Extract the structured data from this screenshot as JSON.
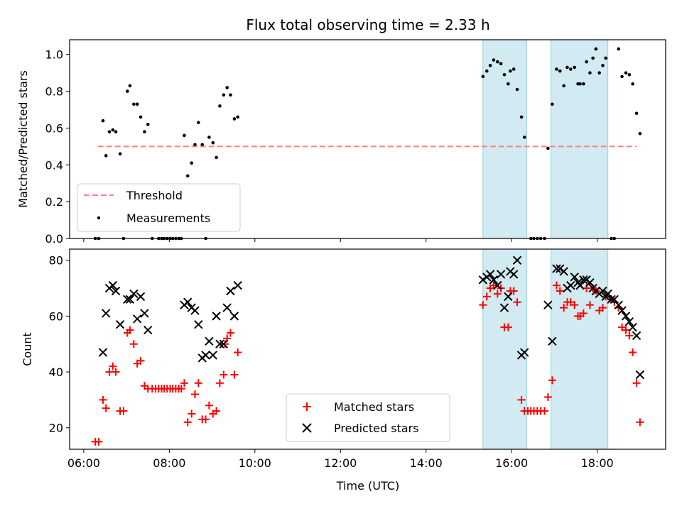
{
  "chart_data": {
    "type": "scatter",
    "title": "Flux total observing time = 2.33 h",
    "xlabel": "Time (UTC)",
    "x_unit": "hours UTC",
    "xlim": [
      5.67,
      19.6
    ],
    "x_ticks": [
      6,
      8,
      10,
      12,
      14,
      16,
      18
    ],
    "x_tick_labels": [
      "06:00",
      "08:00",
      "10:00",
      "12:00",
      "14:00",
      "16:00",
      "18:00"
    ],
    "shaded_intervals": [
      [
        15.33,
        16.35
      ],
      [
        16.92,
        18.25
      ]
    ],
    "shade_color": "#add8e6",
    "top_panel": {
      "ylabel": "Matched/Predicted stars",
      "ylim": [
        0.0,
        1.08
      ],
      "y_ticks": [
        0.0,
        0.2,
        0.4,
        0.6,
        0.8,
        1.0
      ],
      "y_tick_labels": [
        "0.0",
        "0.2",
        "0.4",
        "0.6",
        "0.8",
        "1.0"
      ],
      "legend_position": "lower-left",
      "threshold": {
        "name": "Threshold",
        "y": 0.5,
        "x_range": [
          6.33,
          18.92
        ],
        "color": "#ff7f7f"
      },
      "measurements": {
        "name": "Measurements",
        "color": "#000000",
        "points": [
          [
            6.27,
            0.0
          ],
          [
            6.35,
            0.0
          ],
          [
            6.45,
            0.64
          ],
          [
            6.52,
            0.45
          ],
          [
            6.6,
            0.58
          ],
          [
            6.68,
            0.59
          ],
          [
            6.75,
            0.58
          ],
          [
            6.85,
            0.46
          ],
          [
            6.93,
            0.0
          ],
          [
            7.02,
            0.8
          ],
          [
            7.08,
            0.83
          ],
          [
            7.17,
            0.73
          ],
          [
            7.25,
            0.73
          ],
          [
            7.33,
            0.66
          ],
          [
            7.42,
            0.58
          ],
          [
            7.5,
            0.62
          ],
          [
            7.6,
            0.0
          ],
          [
            7.75,
            0.0
          ],
          [
            7.82,
            0.0
          ],
          [
            7.88,
            0.0
          ],
          [
            7.95,
            0.0
          ],
          [
            8.02,
            0.0
          ],
          [
            8.08,
            0.0
          ],
          [
            8.15,
            0.0
          ],
          [
            8.22,
            0.0
          ],
          [
            8.28,
            0.0
          ],
          [
            8.35,
            0.56
          ],
          [
            8.43,
            0.34
          ],
          [
            8.52,
            0.41
          ],
          [
            8.6,
            0.51
          ],
          [
            8.68,
            0.63
          ],
          [
            8.77,
            0.51
          ],
          [
            8.85,
            0.0
          ],
          [
            8.93,
            0.55
          ],
          [
            9.02,
            0.52
          ],
          [
            9.1,
            0.44
          ],
          [
            9.18,
            0.72
          ],
          [
            9.27,
            0.78
          ],
          [
            9.35,
            0.82
          ],
          [
            9.43,
            0.78
          ],
          [
            9.52,
            0.65
          ],
          [
            9.6,
            0.66
          ],
          [
            15.33,
            0.88
          ],
          [
            15.42,
            0.91
          ],
          [
            15.5,
            0.94
          ],
          [
            15.58,
            0.97
          ],
          [
            15.67,
            0.96
          ],
          [
            15.75,
            0.95
          ],
          [
            15.83,
            0.89
          ],
          [
            15.92,
            0.84
          ],
          [
            15.97,
            0.91
          ],
          [
            16.05,
            0.92
          ],
          [
            16.13,
            0.81
          ],
          [
            16.23,
            0.66
          ],
          [
            16.3,
            0.55
          ],
          [
            16.45,
            0.0
          ],
          [
            16.52,
            0.0
          ],
          [
            16.6,
            0.0
          ],
          [
            16.68,
            0.0
          ],
          [
            16.77,
            0.0
          ],
          [
            16.85,
            0.49
          ],
          [
            16.95,
            0.73
          ],
          [
            17.05,
            0.92
          ],
          [
            17.13,
            0.91
          ],
          [
            17.22,
            0.83
          ],
          [
            17.3,
            0.93
          ],
          [
            17.38,
            0.92
          ],
          [
            17.47,
            0.93
          ],
          [
            17.55,
            0.84
          ],
          [
            17.6,
            0.84
          ],
          [
            17.68,
            0.84
          ],
          [
            17.75,
            0.96
          ],
          [
            17.83,
            0.9
          ],
          [
            17.9,
            0.98
          ],
          [
            17.97,
            1.03
          ],
          [
            18.05,
            0.9
          ],
          [
            18.13,
            0.94
          ],
          [
            18.2,
            0.98
          ],
          [
            18.33,
            0.0
          ],
          [
            18.4,
            0.0
          ],
          [
            18.5,
            1.03
          ],
          [
            18.58,
            0.88
          ],
          [
            18.67,
            0.9
          ],
          [
            18.75,
            0.89
          ],
          [
            18.83,
            0.84
          ],
          [
            18.92,
            0.68
          ],
          [
            19.0,
            0.57
          ]
        ]
      }
    },
    "bottom_panel": {
      "ylabel": "Count",
      "ylim": [
        12.3,
        84
      ],
      "y_ticks": [
        20,
        40,
        60,
        80
      ],
      "y_tick_labels": [
        "20",
        "40",
        "60",
        "80"
      ],
      "legend_position": "lower-center",
      "series": [
        {
          "name": "Matched stars",
          "marker": "plus",
          "color": "#ff0000",
          "points": [
            [
              6.27,
              15
            ],
            [
              6.35,
              15
            ],
            [
              6.45,
              30
            ],
            [
              6.52,
              27
            ],
            [
              6.6,
              40
            ],
            [
              6.68,
              42
            ],
            [
              6.75,
              40
            ],
            [
              6.85,
              26
            ],
            [
              6.93,
              26
            ],
            [
              7.02,
              54
            ],
            [
              7.08,
              55
            ],
            [
              7.17,
              50
            ],
            [
              7.25,
              43
            ],
            [
              7.33,
              44
            ],
            [
              7.42,
              35
            ],
            [
              7.5,
              34
            ],
            [
              7.6,
              34
            ],
            [
              7.68,
              34
            ],
            [
              7.75,
              34
            ],
            [
              7.82,
              34
            ],
            [
              7.88,
              34
            ],
            [
              7.95,
              34
            ],
            [
              8.02,
              34
            ],
            [
              8.08,
              34
            ],
            [
              8.15,
              34
            ],
            [
              8.22,
              34
            ],
            [
              8.28,
              34
            ],
            [
              8.35,
              36
            ],
            [
              8.43,
              22
            ],
            [
              8.52,
              25
            ],
            [
              8.6,
              32
            ],
            [
              8.68,
              36
            ],
            [
              8.77,
              23
            ],
            [
              8.85,
              23
            ],
            [
              8.93,
              28
            ],
            [
              9.02,
              25
            ],
            [
              9.1,
              26
            ],
            [
              9.18,
              36
            ],
            [
              9.27,
              39
            ],
            [
              9.3,
              50
            ],
            [
              9.35,
              52
            ],
            [
              9.43,
              54
            ],
            [
              9.52,
              39
            ],
            [
              9.6,
              47
            ],
            [
              15.33,
              64
            ],
            [
              15.42,
              67
            ],
            [
              15.5,
              70
            ],
            [
              15.58,
              71
            ],
            [
              15.67,
              68
            ],
            [
              15.75,
              70
            ],
            [
              15.83,
              56
            ],
            [
              15.92,
              56
            ],
            [
              15.97,
              69
            ],
            [
              16.05,
              69
            ],
            [
              16.13,
              65
            ],
            [
              16.23,
              30
            ],
            [
              16.3,
              26
            ],
            [
              16.38,
              26
            ],
            [
              16.45,
              26
            ],
            [
              16.52,
              26
            ],
            [
              16.6,
              26
            ],
            [
              16.68,
              26
            ],
            [
              16.77,
              26
            ],
            [
              16.85,
              31
            ],
            [
              16.95,
              37
            ],
            [
              17.05,
              71
            ],
            [
              17.13,
              69
            ],
            [
              17.22,
              63
            ],
            [
              17.3,
              65
            ],
            [
              17.38,
              65
            ],
            [
              17.47,
              64
            ],
            [
              17.55,
              60
            ],
            [
              17.6,
              60
            ],
            [
              17.68,
              61
            ],
            [
              17.75,
              70
            ],
            [
              17.83,
              64
            ],
            [
              17.9,
              70
            ],
            [
              17.97,
              69
            ],
            [
              18.05,
              62
            ],
            [
              18.13,
              63
            ],
            [
              18.2,
              67
            ],
            [
              18.33,
              66
            ],
            [
              18.4,
              65
            ],
            [
              18.5,
              63
            ],
            [
              18.58,
              56
            ],
            [
              18.67,
              55
            ],
            [
              18.75,
              53
            ],
            [
              18.83,
              47
            ],
            [
              18.92,
              36
            ],
            [
              19.0,
              22
            ]
          ]
        },
        {
          "name": "Predicted stars",
          "marker": "x",
          "color": "#000000",
          "points": [
            [
              6.45,
              47
            ],
            [
              6.52,
              61
            ],
            [
              6.6,
              70
            ],
            [
              6.68,
              71
            ],
            [
              6.75,
              69
            ],
            [
              6.85,
              57
            ],
            [
              7.02,
              66
            ],
            [
              7.08,
              66
            ],
            [
              7.17,
              68
            ],
            [
              7.25,
              59
            ],
            [
              7.33,
              67
            ],
            [
              7.42,
              61
            ],
            [
              7.5,
              55
            ],
            [
              8.35,
              64
            ],
            [
              8.43,
              65
            ],
            [
              8.52,
              63
            ],
            [
              8.6,
              62
            ],
            [
              8.68,
              57
            ],
            [
              8.77,
              45
            ],
            [
              8.85,
              46
            ],
            [
              8.93,
              51
            ],
            [
              9.02,
              46
            ],
            [
              9.1,
              60
            ],
            [
              9.18,
              50
            ],
            [
              9.27,
              50
            ],
            [
              9.35,
              63
            ],
            [
              9.43,
              69
            ],
            [
              9.52,
              60
            ],
            [
              9.6,
              71
            ],
            [
              15.33,
              73
            ],
            [
              15.42,
              74
            ],
            [
              15.5,
              75
            ],
            [
              15.58,
              73
            ],
            [
              15.67,
              71
            ],
            [
              15.75,
              75
            ],
            [
              15.83,
              63
            ],
            [
              15.92,
              67
            ],
            [
              15.97,
              76
            ],
            [
              16.05,
              75
            ],
            [
              16.13,
              80
            ],
            [
              16.23,
              46
            ],
            [
              16.3,
              47
            ],
            [
              16.85,
              64
            ],
            [
              16.95,
              51
            ],
            [
              17.05,
              77
            ],
            [
              17.13,
              77
            ],
            [
              17.22,
              76
            ],
            [
              17.3,
              70
            ],
            [
              17.38,
              71
            ],
            [
              17.47,
              74
            ],
            [
              17.55,
              72
            ],
            [
              17.6,
              71
            ],
            [
              17.68,
              73
            ],
            [
              17.75,
              73
            ],
            [
              17.83,
              72
            ],
            [
              17.9,
              70
            ],
            [
              17.97,
              69
            ],
            [
              18.05,
              68
            ],
            [
              18.13,
              69
            ],
            [
              18.2,
              67
            ],
            [
              18.25,
              68
            ],
            [
              18.33,
              66
            ],
            [
              18.4,
              66
            ],
            [
              18.5,
              64
            ],
            [
              18.58,
              62
            ],
            [
              18.67,
              60
            ],
            [
              18.75,
              58
            ],
            [
              18.83,
              56
            ],
            [
              18.92,
              53
            ],
            [
              19.0,
              39
            ]
          ]
        }
      ]
    }
  }
}
